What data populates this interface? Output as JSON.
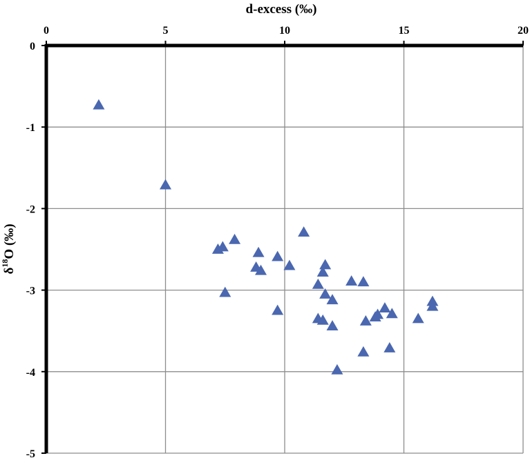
{
  "chart_data": {
    "type": "scatter",
    "xlabel": "d-excess (‰)",
    "ylabel": {
      "prefix": "δ",
      "sup": "18",
      "suffix": "O (‰)"
    },
    "xlim": [
      0,
      20
    ],
    "ylim": [
      -5,
      0
    ],
    "x_ticks": [
      "0",
      "5",
      "10",
      "15",
      "20"
    ],
    "y_ticks": [
      "0",
      "-1",
      "-2",
      "-3",
      "-4",
      "-5"
    ],
    "x_axis_position": "top",
    "grid": true,
    "marker": "triangle",
    "color": "#4a67b0",
    "series": [
      {
        "points": [
          [
            2.2,
            -0.73
          ],
          [
            5.0,
            -1.71
          ],
          [
            7.2,
            -2.5
          ],
          [
            7.4,
            -2.47
          ],
          [
            7.9,
            -2.38
          ],
          [
            7.5,
            -3.03
          ],
          [
            8.8,
            -2.72
          ],
          [
            8.9,
            -2.54
          ],
          [
            9.0,
            -2.76
          ],
          [
            9.7,
            -2.59
          ],
          [
            9.7,
            -3.25
          ],
          [
            10.2,
            -2.7
          ],
          [
            10.8,
            -2.29
          ],
          [
            11.4,
            -2.93
          ],
          [
            11.4,
            -3.35
          ],
          [
            11.6,
            -3.37
          ],
          [
            11.6,
            -2.78
          ],
          [
            11.7,
            -2.69
          ],
          [
            11.7,
            -3.05
          ],
          [
            12.0,
            -3.12
          ],
          [
            12.0,
            -3.44
          ],
          [
            12.2,
            -3.98
          ],
          [
            12.8,
            -2.89
          ],
          [
            13.3,
            -2.9
          ],
          [
            13.3,
            -3.76
          ],
          [
            13.4,
            -3.38
          ],
          [
            13.8,
            -3.33
          ],
          [
            13.9,
            -3.3
          ],
          [
            14.2,
            -3.22
          ],
          [
            14.4,
            -3.71
          ],
          [
            14.5,
            -3.29
          ],
          [
            15.6,
            -3.35
          ],
          [
            16.2,
            -3.14
          ],
          [
            16.2,
            -3.2
          ]
        ]
      }
    ]
  }
}
